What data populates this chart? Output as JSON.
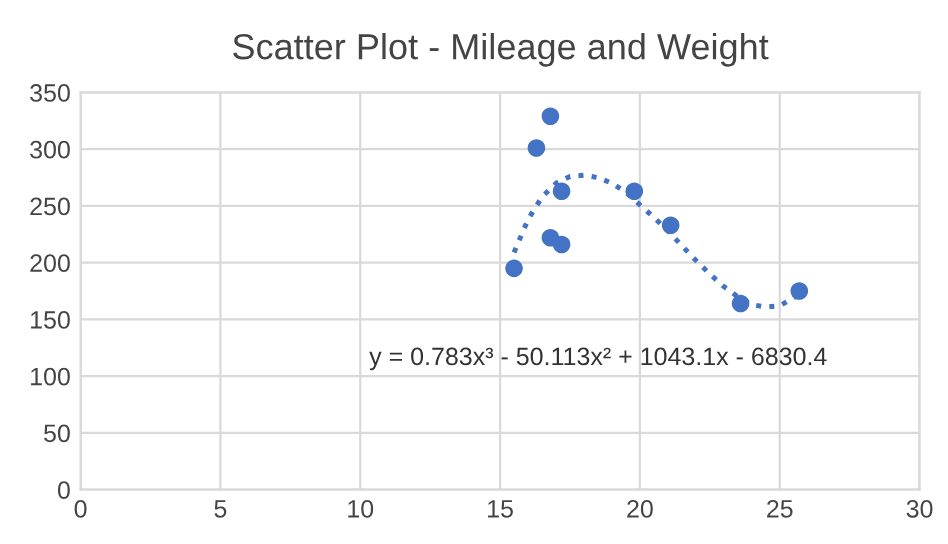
{
  "chart_data": {
    "type": "scatter",
    "title": "Scatter Plot - Mileage and Weight",
    "series": [
      {
        "color": "#4472c4",
        "marker": "circle",
        "x": [
          15.5,
          16.3,
          16.8,
          17.2,
          16.8,
          17.2,
          19.8,
          21.1,
          23.6,
          25.7
        ],
        "values": [
          195,
          301,
          329,
          263,
          222,
          216,
          263,
          233,
          164,
          175
        ]
      },
      {
        "type": "line",
        "color": "#4472c4",
        "line_style": "dotted",
        "marker": "none",
        "x": [
          15.5,
          16,
          16.5,
          17,
          17.5,
          18,
          18.5,
          19,
          19.5,
          20,
          20.5,
          21,
          21.5,
          22,
          22.5,
          23,
          23.5,
          24,
          24.5,
          25,
          25.5,
          25.7
        ],
        "values": [
          209,
          238,
          258,
          270,
          276,
          277,
          275,
          270,
          262,
          251,
          240,
          228,
          215,
          202,
          190,
          179,
          170,
          163,
          161,
          162,
          169,
          174
        ]
      }
    ],
    "annotations": [
      "y = 0.783x³ - 50.113x² + 1043.1x - 6830.4"
    ],
    "xlim": [
      0,
      30
    ],
    "xticks": [
      0,
      5,
      10,
      15,
      20,
      25,
      30
    ],
    "ylim": [
      0,
      350
    ],
    "yticks": [
      0,
      50,
      100,
      150,
      200,
      250,
      300,
      350
    ],
    "grid": true
  }
}
